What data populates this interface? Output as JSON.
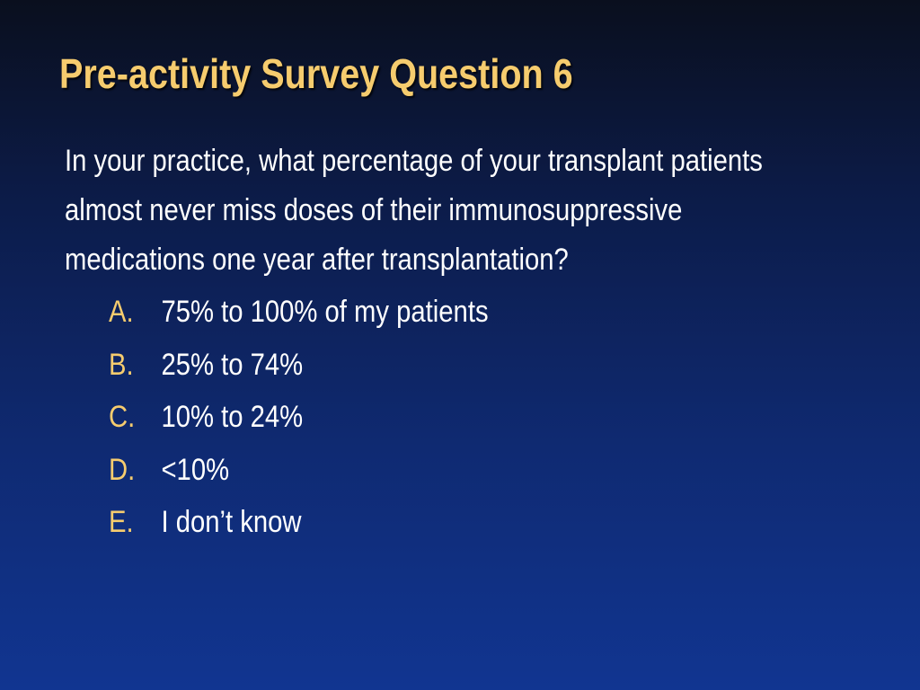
{
  "slide": {
    "title": "Pre-activity Survey Question 6",
    "question_lines": [
      "In your practice, what percentage of your transplant patients",
      "almost never miss doses of their immunosuppressive",
      "medications one year after transplantation?"
    ],
    "options": [
      {
        "letter": "A.",
        "text": "75% to 100% of my patients"
      },
      {
        "letter": "B.",
        "text": "25% to 74%"
      },
      {
        "letter": "C.",
        "text": "10% to 24%"
      },
      {
        "letter": "D.",
        "text": "<10%"
      },
      {
        "letter": "E.",
        "text": "I don’t know"
      }
    ]
  },
  "colors": {
    "title": "#f6cc6e",
    "option_letter": "#f6cc6e",
    "body_text": "#ffffff",
    "background_top": "#0a0f1e",
    "background_bottom": "#113591"
  }
}
